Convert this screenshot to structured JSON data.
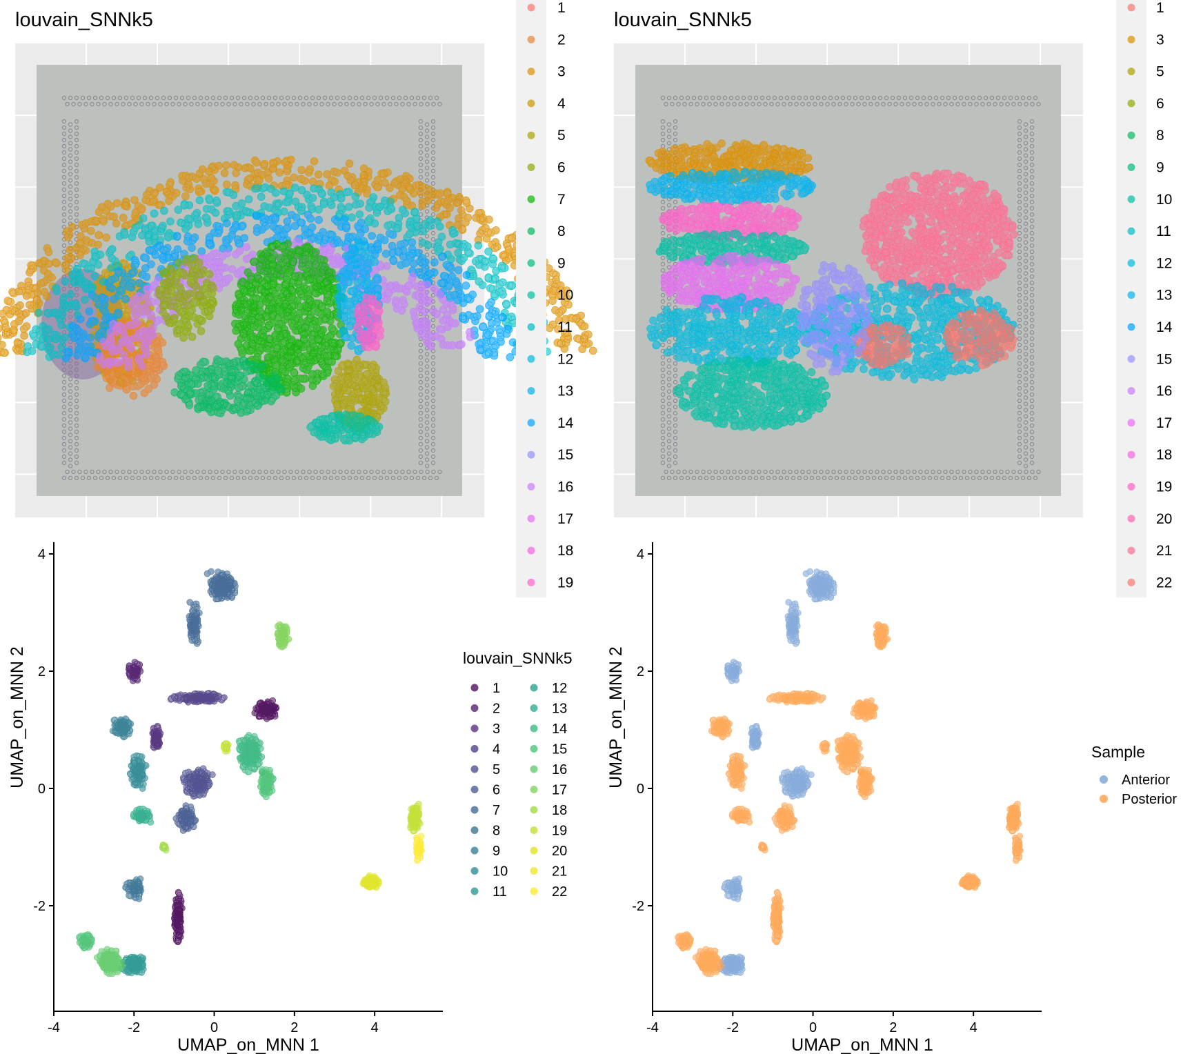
{
  "panels": {
    "top_left": {
      "title": "louvain_SNNk5",
      "legend_entries": [
        "1",
        "2",
        "3",
        "4",
        "5",
        "6",
        "7",
        "8",
        "9",
        "10",
        "11",
        "12",
        "13",
        "14",
        "15",
        "16",
        "17",
        "18",
        "19"
      ]
    },
    "top_right": {
      "title": "louvain_SNNk5",
      "legend_entries": [
        "1",
        "3",
        "5",
        "6",
        "8",
        "9",
        "10",
        "11",
        "12",
        "13",
        "14",
        "15",
        "16",
        "17",
        "18",
        "19",
        "20",
        "21",
        "22"
      ]
    },
    "bottom_left": {
      "legend_title": "louvain_SNNk5",
      "legend_col1": [
        "1",
        "2",
        "3",
        "4",
        "5",
        "6",
        "7",
        "8",
        "9",
        "10",
        "11"
      ],
      "legend_col2": [
        "12",
        "13",
        "14",
        "15",
        "16",
        "17",
        "18",
        "19",
        "20",
        "21",
        "22"
      ]
    },
    "bottom_right": {
      "legend_title": "Sample",
      "legend_entries": [
        "Anterior",
        "Posterior"
      ]
    }
  },
  "colors": {
    "hue22": [
      "#F8766D",
      "#EA8331",
      "#DC8F00",
      "#C99800",
      "#ADA200",
      "#8BAB00",
      "#0CB702",
      "#00BA60",
      "#00BE82",
      "#00C0A5",
      "#00BFC4",
      "#00BADE",
      "#00B3F0",
      "#00A5FF",
      "#9590FF",
      "#C77CFF",
      "#E76BF3",
      "#F564E3",
      "#FF61C9",
      "#FF64B0",
      "#FF6C91",
      "#F8766D"
    ],
    "viridis22": [
      "#440154",
      "#471366",
      "#482475",
      "#463480",
      "#414487",
      "#3B528B",
      "#355F8D",
      "#2F6C8E",
      "#2A788E",
      "#25848E",
      "#21918C",
      "#1E9C89",
      "#22A884",
      "#2FB47C",
      "#43BF71",
      "#5AC864",
      "#7AD151",
      "#9AD93C",
      "#BDDF26",
      "#DDE318",
      "#F0E51C",
      "#FDE725"
    ],
    "anterior": "#7BA3D6",
    "posterior": "#FFA04A"
  },
  "chart_data": [
    {
      "type": "scatter",
      "title": "louvain_SNNk5",
      "legend_title": "",
      "series": [
        {
          "name": "1"
        },
        {
          "name": "2"
        },
        {
          "name": "3"
        },
        {
          "name": "4"
        },
        {
          "name": "5"
        },
        {
          "name": "6"
        },
        {
          "name": "7"
        },
        {
          "name": "8"
        },
        {
          "name": "9"
        },
        {
          "name": "10"
        },
        {
          "name": "11"
        },
        {
          "name": "12"
        },
        {
          "name": "13"
        },
        {
          "name": "14"
        },
        {
          "name": "15"
        },
        {
          "name": "16"
        },
        {
          "name": "17"
        },
        {
          "name": "18"
        },
        {
          "name": "19"
        }
      ],
      "grid": true,
      "legend_placement": "right"
    },
    {
      "type": "scatter",
      "title": "louvain_SNNk5",
      "legend_title": "",
      "series": [
        {
          "name": "1"
        },
        {
          "name": "3"
        },
        {
          "name": "5"
        },
        {
          "name": "6"
        },
        {
          "name": "8"
        },
        {
          "name": "9"
        },
        {
          "name": "10"
        },
        {
          "name": "11"
        },
        {
          "name": "12"
        },
        {
          "name": "13"
        },
        {
          "name": "14"
        },
        {
          "name": "15"
        },
        {
          "name": "16"
        },
        {
          "name": "17"
        },
        {
          "name": "18"
        },
        {
          "name": "19"
        },
        {
          "name": "20"
        },
        {
          "name": "21"
        },
        {
          "name": "22"
        }
      ],
      "grid": true,
      "legend_placement": "right"
    },
    {
      "type": "scatter",
      "xlabel": "UMAP_on_MNN 1",
      "ylabel": "UMAP_on_MNN 2",
      "xlim": [
        -4,
        5.7
      ],
      "ylim": [
        -3.8,
        4.2
      ],
      "xticks": [
        -4,
        -2,
        0,
        2,
        4
      ],
      "yticks": [
        -2,
        0,
        2,
        4
      ],
      "legend_title": "louvain_SNNk5",
      "legend_placement": "right",
      "clusters": [
        {
          "label": "1",
          "x": 1.3,
          "y": 1.35
        },
        {
          "label": "1",
          "x": -0.9,
          "y": -2.2
        },
        {
          "label": "3",
          "x": -1.5,
          "y": 0.9
        },
        {
          "label": "2",
          "x": -2.0,
          "y": 2.0
        },
        {
          "label": "4",
          "x": -0.5,
          "y": 1.55
        },
        {
          "label": "5",
          "x": -0.4,
          "y": 0.1
        },
        {
          "label": "6",
          "x": -0.7,
          "y": -0.5
        },
        {
          "label": "7",
          "x": 0.1,
          "y": 3.4
        },
        {
          "label": "8",
          "x": -2.1,
          "y": -1.7
        },
        {
          "label": "9",
          "x": -2.3,
          "y": 1.1
        },
        {
          "label": "10",
          "x": -1.8,
          "y": 0.3
        },
        {
          "label": "11",
          "x": -2.0,
          "y": -3.0
        },
        {
          "label": "13",
          "x": -1.8,
          "y": -0.5
        },
        {
          "label": "14",
          "x": 0.8,
          "y": 0.6
        },
        {
          "label": "15",
          "x": 1.3,
          "y": 0.2
        },
        {
          "label": "16",
          "x": -2.7,
          "y": -2.9
        },
        {
          "label": "17",
          "x": 1.7,
          "y": 2.6
        },
        {
          "label": "18",
          "x": -1.2,
          "y": -1.0
        },
        {
          "label": "19",
          "x": 5.0,
          "y": -0.5
        },
        {
          "label": "20",
          "x": 3.8,
          "y": -1.6
        },
        {
          "label": "21",
          "x": 5.1,
          "y": -1.0
        }
      ]
    },
    {
      "type": "scatter",
      "xlabel": "UMAP_on_MNN 1",
      "ylabel": "UMAP_on_MNN 2",
      "xlim": [
        -4,
        5.7
      ],
      "ylim": [
        -3.8,
        4.2
      ],
      "xticks": [
        -4,
        -2,
        0,
        2,
        4
      ],
      "yticks": [
        -2,
        0,
        2,
        4
      ],
      "legend_title": "Sample",
      "legend_placement": "right",
      "series": [
        {
          "name": "Anterior"
        },
        {
          "name": "Posterior"
        }
      ]
    }
  ]
}
